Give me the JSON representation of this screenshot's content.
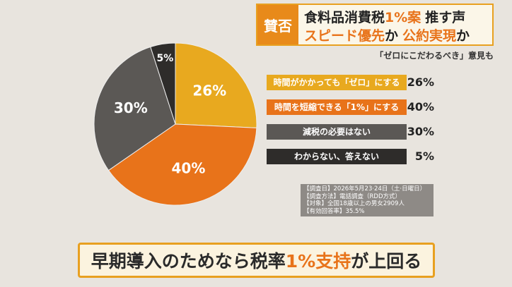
{
  "header": {
    "tag": "賛否",
    "line1": [
      "食料品消費税",
      "1%案",
      "推す声"
    ],
    "line2": [
      "スピード優先",
      "か",
      "公約実現",
      "か"
    ],
    "subtitle": "「ゼロにこだわるべき」意見も"
  },
  "chart_data": {
    "type": "pie",
    "categories": [
      "時間がかかっても「ゼロ」にする",
      "時間を短縮できる「1%」にする",
      "減税の必要はない",
      "わからない、答えない"
    ],
    "values": [
      26,
      40,
      30,
      5
    ],
    "value_labels": [
      "26%",
      "40%",
      "30%",
      "5%"
    ],
    "colors": [
      "#e8a91f",
      "#e8731a",
      "#5b5855",
      "#2e2c2a"
    ]
  },
  "notes": [
    "【調査日】2026年5月23·24日（土·日曜日）",
    "【調査方法】電話調査（RDD方式）",
    "【対象】全国18歳以上の男女2909人",
    "【有効回答率】35.5%"
  ],
  "banner": [
    "早期導入のためなら税率",
    "1%支持",
    "が上回る"
  ]
}
